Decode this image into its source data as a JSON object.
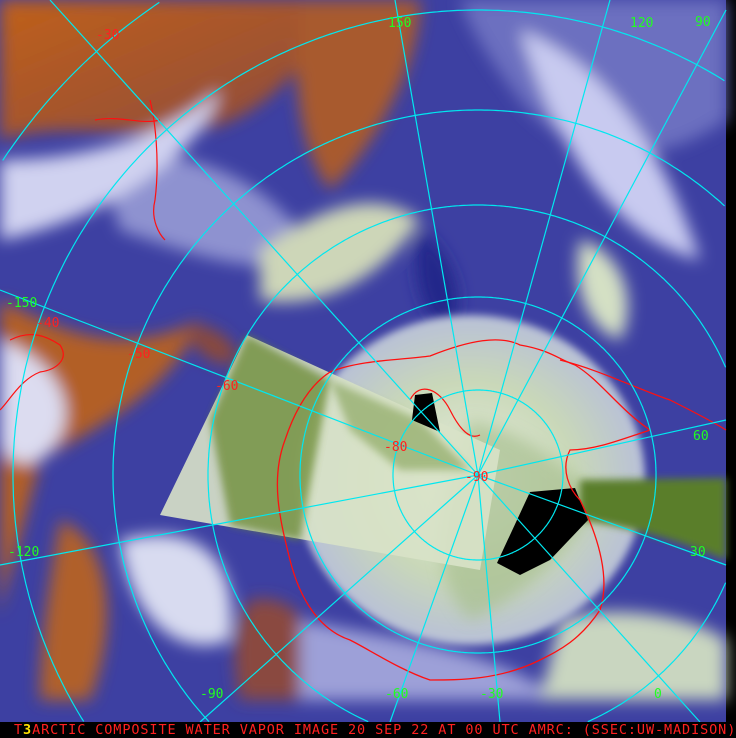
{
  "image": {
    "type": "satellite-composite",
    "product": "water vapor",
    "colors": {
      "dry": "#c8661a",
      "moist": "#3b3ea0",
      "cloud": "#ffffff",
      "polar_ice": "#5a8a2a",
      "graticule": "#00e8f0",
      "coastline": "#ff1010",
      "lon_label": "#20ff20",
      "lat_label": "#ff2020"
    }
  },
  "caption": {
    "prefix": "T",
    "marker": "3",
    "text": "ARCTIC COMPOSITE WATER VAPOR IMAGE 20 SEP 22 AT 00 UTC AMRC: (SSEC:UW-MADISON)"
  },
  "longitude_labels": [
    "150",
    "120",
    "90",
    "60",
    "30",
    "0",
    "-30",
    "-60",
    "-90",
    "-120",
    "-150"
  ],
  "latitude_labels": [
    "-30",
    "-40",
    "-50",
    "-60",
    "-80",
    "-90"
  ]
}
